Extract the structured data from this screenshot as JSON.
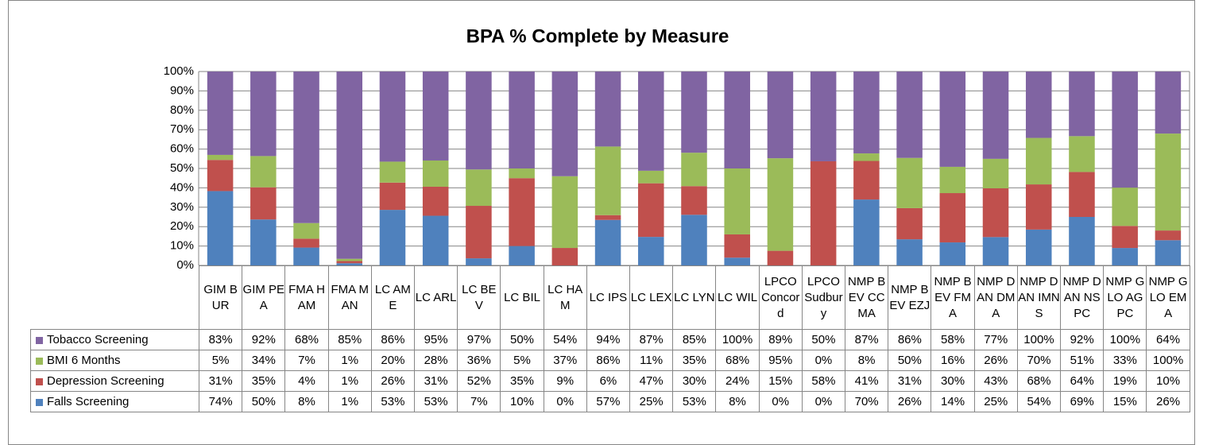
{
  "chart_data": {
    "type": "bar",
    "stacking": "percent",
    "title": "BPA % Complete by Measure",
    "categories": [
      "GIM BUR",
      "GIM PEA",
      "FMA HAM",
      "FMA MAN",
      "LC AME",
      "LC ARL",
      "LC BEV",
      "LC BIL",
      "LC HAM",
      "LC IPS",
      "LC LEX",
      "LC LYN",
      "LC WIL",
      "LPCO Concord",
      "LPCO Sudbury",
      "NMP BEV CCMA",
      "NMP BEV EZJ",
      "NMP BEV FMA",
      "NMP DAN DMA",
      "NMP DAN IMNS",
      "NMP DAN NSPC",
      "NMP GLO AGPC",
      "NMP GLO EMA"
    ],
    "series": [
      {
        "name": "Tobacco Screening",
        "color": "#8064a2",
        "values": [
          83,
          92,
          68,
          85,
          86,
          95,
          97,
          50,
          54,
          94,
          87,
          85,
          100,
          89,
          50,
          87,
          86,
          58,
          77,
          100,
          92,
          100,
          64
        ],
        "value_labels": [
          "83%",
          "92%",
          "68%",
          "85%",
          "86%",
          "95%",
          "97%",
          "50%",
          "54%",
          "94%",
          "87%",
          "85%",
          "100%",
          "89%",
          "50%",
          "87%",
          "86%",
          "58%",
          "77%",
          "100%",
          "92%",
          "100%",
          "64%"
        ]
      },
      {
        "name": "BMI 6 Months",
        "color": "#9bbb59",
        "values": [
          5,
          34,
          7,
          1,
          20,
          28,
          36,
          5,
          37,
          86,
          11,
          35,
          68,
          95,
          0,
          8,
          50,
          16,
          26,
          70,
          51,
          33,
          100
        ],
        "value_labels": [
          "5%",
          "34%",
          "7%",
          "1%",
          "20%",
          "28%",
          "36%",
          "5%",
          "37%",
          "86%",
          "11%",
          "35%",
          "68%",
          "95%",
          "0%",
          "8%",
          "50%",
          "16%",
          "26%",
          "70%",
          "51%",
          "33%",
          "100%"
        ]
      },
      {
        "name": "Depression Screening",
        "color": "#c0504d",
        "values": [
          31,
          35,
          4,
          1,
          26,
          31,
          52,
          35,
          9,
          6,
          47,
          30,
          24,
          15,
          58,
          41,
          31,
          30,
          43,
          68,
          64,
          19,
          10
        ],
        "value_labels": [
          "31%",
          "35%",
          "4%",
          "1%",
          "26%",
          "31%",
          "52%",
          "35%",
          "9%",
          "6%",
          "47%",
          "30%",
          "24%",
          "15%",
          "58%",
          "41%",
          "31%",
          "30%",
          "43%",
          "68%",
          "64%",
          "19%",
          "10%"
        ]
      },
      {
        "name": "Falls Screening",
        "color": "#4f81bd",
        "values": [
          74,
          50,
          8,
          1,
          53,
          53,
          7,
          10,
          0,
          57,
          25,
          53,
          8,
          0,
          0,
          70,
          26,
          14,
          25,
          54,
          69,
          15,
          26
        ],
        "value_labels": [
          "74%",
          "50%",
          "8%",
          "1%",
          "53%",
          "53%",
          "7%",
          "10%",
          "0%",
          "57%",
          "25%",
          "53%",
          "8%",
          "0%",
          "0%",
          "70%",
          "26%",
          "14%",
          "25%",
          "54%",
          "69%",
          "15%",
          "26%"
        ]
      }
    ],
    "ylim": [
      0,
      100
    ],
    "yticks": [
      {
        "value": 0,
        "label": "0%"
      },
      {
        "value": 10,
        "label": "10%"
      },
      {
        "value": 20,
        "label": "20%"
      },
      {
        "value": 30,
        "label": "30%"
      },
      {
        "value": 40,
        "label": "40%"
      },
      {
        "value": 50,
        "label": "50%"
      },
      {
        "value": 60,
        "label": "60%"
      },
      {
        "value": 70,
        "label": "70%"
      },
      {
        "value": 80,
        "label": "80%"
      },
      {
        "value": 90,
        "label": "90%"
      },
      {
        "value": 100,
        "label": "100%"
      }
    ],
    "grid": true
  }
}
